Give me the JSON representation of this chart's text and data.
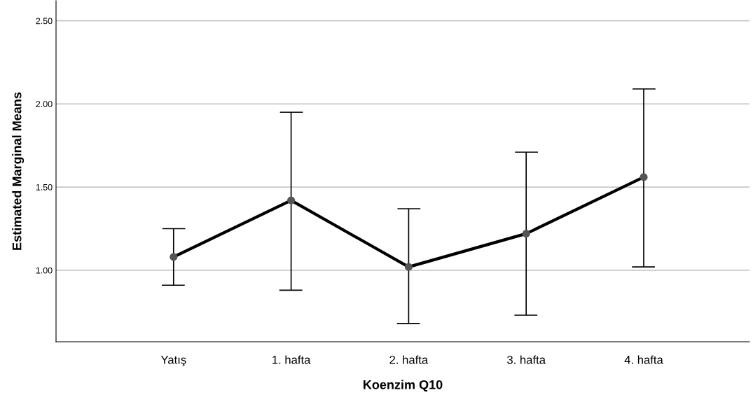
{
  "chart_data": {
    "type": "line",
    "xlabel": "Koenzim Q10",
    "ylabel": "Estimated Marginal Means",
    "categories": [
      "Yatış",
      "1. hafta",
      "2. hafta",
      "3. hafta",
      "4. hafta"
    ],
    "series": [
      {
        "color": "#000000",
        "values": [
          1.08,
          1.42,
          1.02,
          1.22,
          1.56
        ],
        "errors": [
          [
            0.91,
            1.25
          ],
          [
            0.88,
            1.95
          ],
          [
            0.68,
            1.37
          ],
          [
            0.73,
            1.71
          ],
          [
            1.02,
            2.09
          ]
        ]
      }
    ],
    "ylim": [
      0.57,
      2.62
    ],
    "yticks": [
      {
        "value": 1.0,
        "label": "1.00"
      },
      {
        "value": 1.5,
        "label": "1.50"
      },
      {
        "value": 2.0,
        "label": "2.00"
      },
      {
        "value": 2.5,
        "label": "2.50"
      }
    ],
    "grid": "y",
    "marker": "circle",
    "line_style": "solid",
    "legend": false
  }
}
